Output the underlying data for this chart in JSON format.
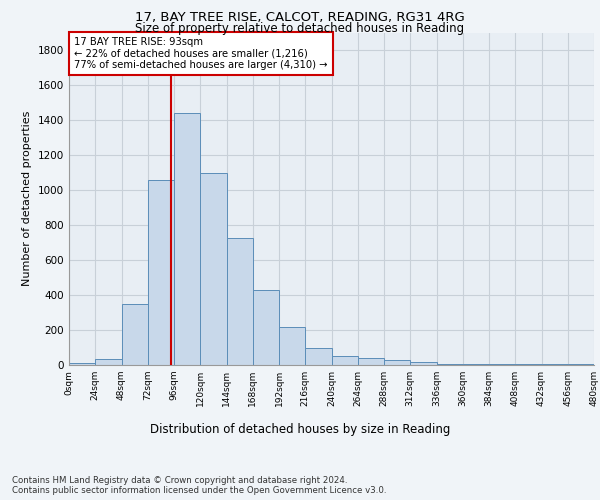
{
  "title_line1": "17, BAY TREE RISE, CALCOT, READING, RG31 4RG",
  "title_line2": "Size of property relative to detached houses in Reading",
  "xlabel": "Distribution of detached houses by size in Reading",
  "ylabel": "Number of detached properties",
  "bar_edges": [
    0,
    24,
    48,
    72,
    96,
    120,
    144,
    168,
    192,
    216,
    240,
    264,
    288,
    312,
    336,
    360,
    384,
    408,
    432,
    456,
    480
  ],
  "bar_heights": [
    10,
    35,
    350,
    1055,
    1440,
    1095,
    725,
    430,
    215,
    100,
    50,
    40,
    30,
    20,
    5,
    5,
    5,
    5,
    5,
    5
  ],
  "bar_color": "#c8d8ea",
  "bar_edgecolor": "#5b8db8",
  "property_size": 93,
  "vline_color": "#cc0000",
  "annotation_text": "17 BAY TREE RISE: 93sqm\n← 22% of detached houses are smaller (1,216)\n77% of semi-detached houses are larger (4,310) →",
  "annotation_box_color": "#ffffff",
  "annotation_box_edgecolor": "#cc0000",
  "ylim": [
    0,
    1900
  ],
  "yticks": [
    0,
    200,
    400,
    600,
    800,
    1000,
    1200,
    1400,
    1600,
    1800
  ],
  "xtick_labels": [
    "0sqm",
    "24sqm",
    "48sqm",
    "72sqm",
    "96sqm",
    "120sqm",
    "144sqm",
    "168sqm",
    "192sqm",
    "216sqm",
    "240sqm",
    "264sqm",
    "288sqm",
    "312sqm",
    "336sqm",
    "360sqm",
    "384sqm",
    "408sqm",
    "432sqm",
    "456sqm",
    "480sqm"
  ],
  "footer_text": "Contains HM Land Registry data © Crown copyright and database right 2024.\nContains public sector information licensed under the Open Government Licence v3.0.",
  "bg_color": "#f0f4f8",
  "plot_bg_color": "#e8eef4",
  "grid_color": "#c8d0d8"
}
